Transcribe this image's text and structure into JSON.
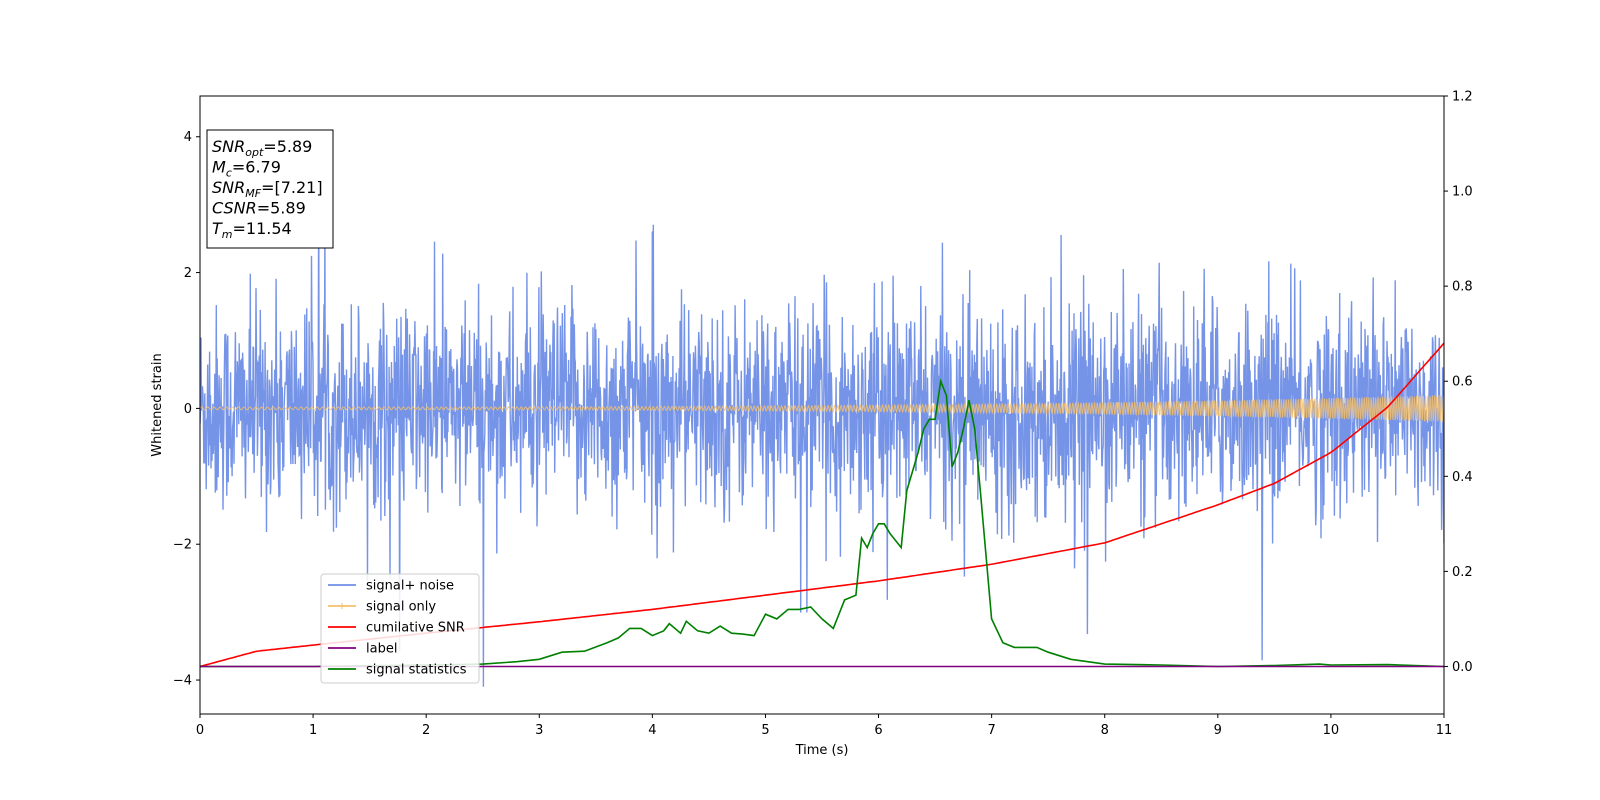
{
  "chart_data": {
    "type": "line",
    "xlabel": "Time (s)",
    "ylabel": "Whitened strain",
    "xlim": [
      0,
      11
    ],
    "ylim": [
      -4.5,
      4.6
    ],
    "y2lim": [
      -0.1,
      1.2
    ],
    "x_ticks": [
      0,
      1,
      2,
      3,
      4,
      5,
      6,
      7,
      8,
      9,
      10,
      11
    ],
    "y_ticks": [
      -4,
      -2,
      0,
      2,
      4
    ],
    "y2_ticks": [
      0.0,
      0.2,
      0.4,
      0.6,
      0.8,
      1.0,
      1.2
    ],
    "y_tick_labels": [
      "−4",
      "−2",
      "0",
      "2",
      "4"
    ],
    "y2_tick_labels": [
      "0.0",
      "0.2",
      "0.4",
      "0.6",
      "0.8",
      "1.0",
      "1.2"
    ],
    "grid": false,
    "legend_position": "lower-left",
    "series": [
      {
        "name": "signal+ noise",
        "axis": "left",
        "color": "#6f8ee6",
        "approx_std": 0.75,
        "approx_peak": 4.1
      },
      {
        "name": "signal only",
        "axis": "left",
        "color": "#f5c06b",
        "envelope_start": 0.02,
        "envelope_end": 0.2
      },
      {
        "name": "cumilative SNR",
        "axis": "right",
        "color": "#ff0000",
        "x": [
          0,
          0.5,
          1,
          2,
          3,
          4,
          5,
          6,
          7,
          8,
          9,
          9.5,
          10,
          10.5,
          11
        ],
        "y": [
          0.0,
          0.032,
          0.045,
          0.07,
          0.094,
          0.12,
          0.15,
          0.18,
          0.215,
          0.26,
          0.34,
          0.385,
          0.45,
          0.545,
          0.68
        ]
      },
      {
        "name": "label",
        "axis": "right",
        "color": "#800080",
        "x": [
          0,
          11
        ],
        "y": [
          0.0,
          0.0
        ]
      },
      {
        "name": "signal statistics",
        "axis": "right",
        "color": "#008000",
        "x": [
          0,
          1,
          2,
          2.5,
          2.8,
          3.0,
          3.2,
          3.4,
          3.6,
          3.7,
          3.8,
          3.9,
          4.0,
          4.1,
          4.15,
          4.25,
          4.3,
          4.4,
          4.5,
          4.6,
          4.7,
          4.8,
          4.9,
          5.0,
          5.1,
          5.2,
          5.3,
          5.4,
          5.5,
          5.6,
          5.7,
          5.8,
          5.85,
          5.9,
          5.95,
          6.0,
          6.05,
          6.1,
          6.2,
          6.25,
          6.35,
          6.4,
          6.45,
          6.5,
          6.55,
          6.6,
          6.65,
          6.7,
          6.75,
          6.8,
          6.85,
          6.9,
          7.0,
          7.1,
          7.2,
          7.3,
          7.4,
          7.5,
          7.7,
          8.0,
          8.5,
          9.0,
          9.5,
          9.9,
          10.0,
          10.5,
          11.0
        ],
        "y": [
          0.0,
          0.0,
          0.003,
          0.005,
          0.01,
          0.015,
          0.03,
          0.032,
          0.05,
          0.06,
          0.08,
          0.08,
          0.065,
          0.075,
          0.09,
          0.07,
          0.095,
          0.075,
          0.07,
          0.085,
          0.07,
          0.068,
          0.065,
          0.11,
          0.1,
          0.12,
          0.12,
          0.125,
          0.1,
          0.08,
          0.14,
          0.15,
          0.27,
          0.25,
          0.28,
          0.3,
          0.3,
          0.28,
          0.25,
          0.37,
          0.45,
          0.5,
          0.52,
          0.52,
          0.6,
          0.57,
          0.42,
          0.45,
          0.5,
          0.56,
          0.5,
          0.37,
          0.1,
          0.05,
          0.04,
          0.04,
          0.04,
          0.03,
          0.015,
          0.005,
          0.003,
          0.0,
          0.002,
          0.005,
          0.003,
          0.004,
          0.0
        ]
      }
    ],
    "annotation": [
      {
        "label": "SNR",
        "sub": "opt",
        "value": "=5.89"
      },
      {
        "label": "M",
        "sub": "c",
        "value": "=6.79"
      },
      {
        "label": "SNR",
        "sub": "MF",
        "value": "=[7.21]"
      },
      {
        "label": "CSNR",
        "sub": "",
        "value": "=5.89"
      },
      {
        "label": "T",
        "sub": "m",
        "value": "=11.54"
      }
    ]
  }
}
